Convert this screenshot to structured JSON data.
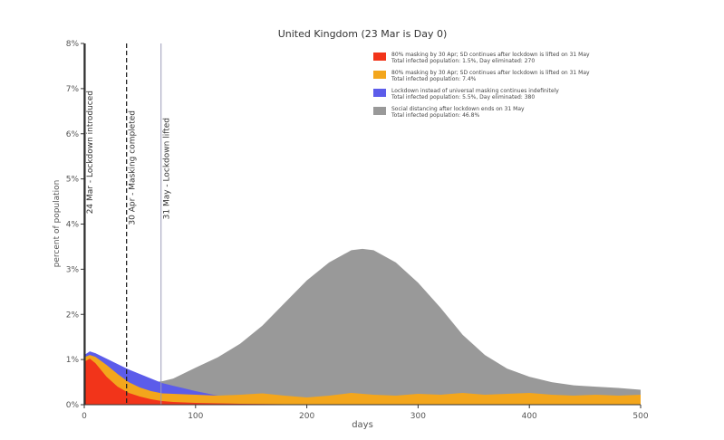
{
  "chart_data": {
    "type": "area",
    "title": "United Kingdom (23 Mar is Day 0)",
    "xlabel": "days",
    "ylabel": "percent of population",
    "xlim": [
      0,
      500
    ],
    "ylim": [
      0,
      8
    ],
    "x_ticks": [
      0,
      100,
      200,
      300,
      400,
      500
    ],
    "x_tick_labels": [
      "0",
      "100",
      "200",
      "300",
      "400",
      "500"
    ],
    "y_ticks": [
      0,
      1,
      2,
      3,
      4,
      5,
      6,
      7,
      8
    ],
    "y_tick_labels": [
      "0%",
      "1%",
      "2%",
      "3%",
      "4%",
      "5%",
      "6%",
      "7%",
      "8%"
    ],
    "grid": false,
    "legend_position": "top-right",
    "colors": {
      "social_distancing": "#999999",
      "lockdown_masking": "#5c5cea",
      "masking_80": "#f3a61c",
      "masking_80_early": "#f2341a"
    },
    "series": [
      {
        "name": "Social distancing after lockdown ends on 31 May",
        "subtitle": "Total infected population: 46.8%",
        "color": "#999999",
        "x": [
          0,
          5,
          10,
          20,
          30,
          40,
          50,
          60,
          70,
          80,
          90,
          100,
          120,
          140,
          160,
          180,
          200,
          220,
          240,
          250,
          260,
          280,
          300,
          320,
          340,
          360,
          380,
          400,
          420,
          440,
          460,
          480,
          500
        ],
        "values": [
          1.05,
          1.1,
          1.08,
          0.98,
          0.85,
          0.7,
          0.6,
          0.5,
          0.52,
          0.58,
          0.7,
          0.82,
          1.05,
          1.35,
          1.75,
          2.25,
          2.75,
          3.15,
          3.42,
          3.45,
          3.42,
          3.15,
          2.7,
          2.15,
          1.55,
          1.1,
          0.8,
          0.62,
          0.5,
          0.43,
          0.4,
          0.37,
          0.33
        ]
      },
      {
        "name": "Lockdown instead of universal masking continues indefinitely",
        "subtitle": "Total infected population: 5.5%, Day eliminated: 380",
        "color": "#5c5cea",
        "x": [
          0,
          5,
          10,
          20,
          30,
          40,
          50,
          60,
          70,
          80,
          90,
          100,
          120,
          140,
          160,
          180,
          200,
          240,
          280,
          320,
          360,
          380
        ],
        "values": [
          1.1,
          1.18,
          1.14,
          1.02,
          0.9,
          0.78,
          0.68,
          0.58,
          0.48,
          0.42,
          0.36,
          0.3,
          0.2,
          0.13,
          0.08,
          0.05,
          0.03,
          0.015,
          0.008,
          0.004,
          0.002,
          0
        ]
      },
      {
        "name": "80% masking by 30 Apr; SD continues after lockdown is lifted on 31 May",
        "subtitle": "Total infected population: 7.4%",
        "color": "#f3a61c",
        "x": [
          0,
          5,
          10,
          20,
          30,
          40,
          50,
          60,
          70,
          80,
          100,
          120,
          140,
          160,
          180,
          200,
          220,
          240,
          260,
          280,
          300,
          320,
          340,
          360,
          380,
          400,
          420,
          440,
          460,
          480,
          500
        ],
        "values": [
          1.05,
          1.1,
          1.06,
          0.88,
          0.68,
          0.5,
          0.38,
          0.3,
          0.25,
          0.24,
          0.22,
          0.2,
          0.22,
          0.25,
          0.2,
          0.16,
          0.2,
          0.26,
          0.22,
          0.2,
          0.24,
          0.22,
          0.26,
          0.22,
          0.24,
          0.26,
          0.22,
          0.2,
          0.22,
          0.2,
          0.22
        ]
      },
      {
        "name": "80% masking by 30 Apr; SD continues after lockdown is lifted on 31 May",
        "subtitle": "Total infected population: 1.5%, Day eliminated: 270",
        "color": "#f2341a",
        "x": [
          0,
          5,
          10,
          20,
          30,
          40,
          50,
          60,
          70,
          80,
          90,
          100,
          120,
          140,
          160,
          180,
          200,
          220,
          240,
          260,
          270
        ],
        "values": [
          0.95,
          1.02,
          0.92,
          0.62,
          0.4,
          0.26,
          0.18,
          0.12,
          0.08,
          0.06,
          0.05,
          0.04,
          0.03,
          0.02,
          0.015,
          0.01,
          0.007,
          0.005,
          0.003,
          0.001,
          0
        ]
      }
    ],
    "annotations": [
      {
        "x": 0,
        "label": "24 Mar - Lockdown introduced",
        "style": "solid",
        "color": "#222222"
      },
      {
        "x": 38,
        "label": "30 Apr - Masking completed",
        "style": "dashed",
        "color": "#222222"
      },
      {
        "x": 69,
        "label": "31 May - Lockdown lifted",
        "style": "solid",
        "color": "#9a9ab8"
      }
    ]
  }
}
